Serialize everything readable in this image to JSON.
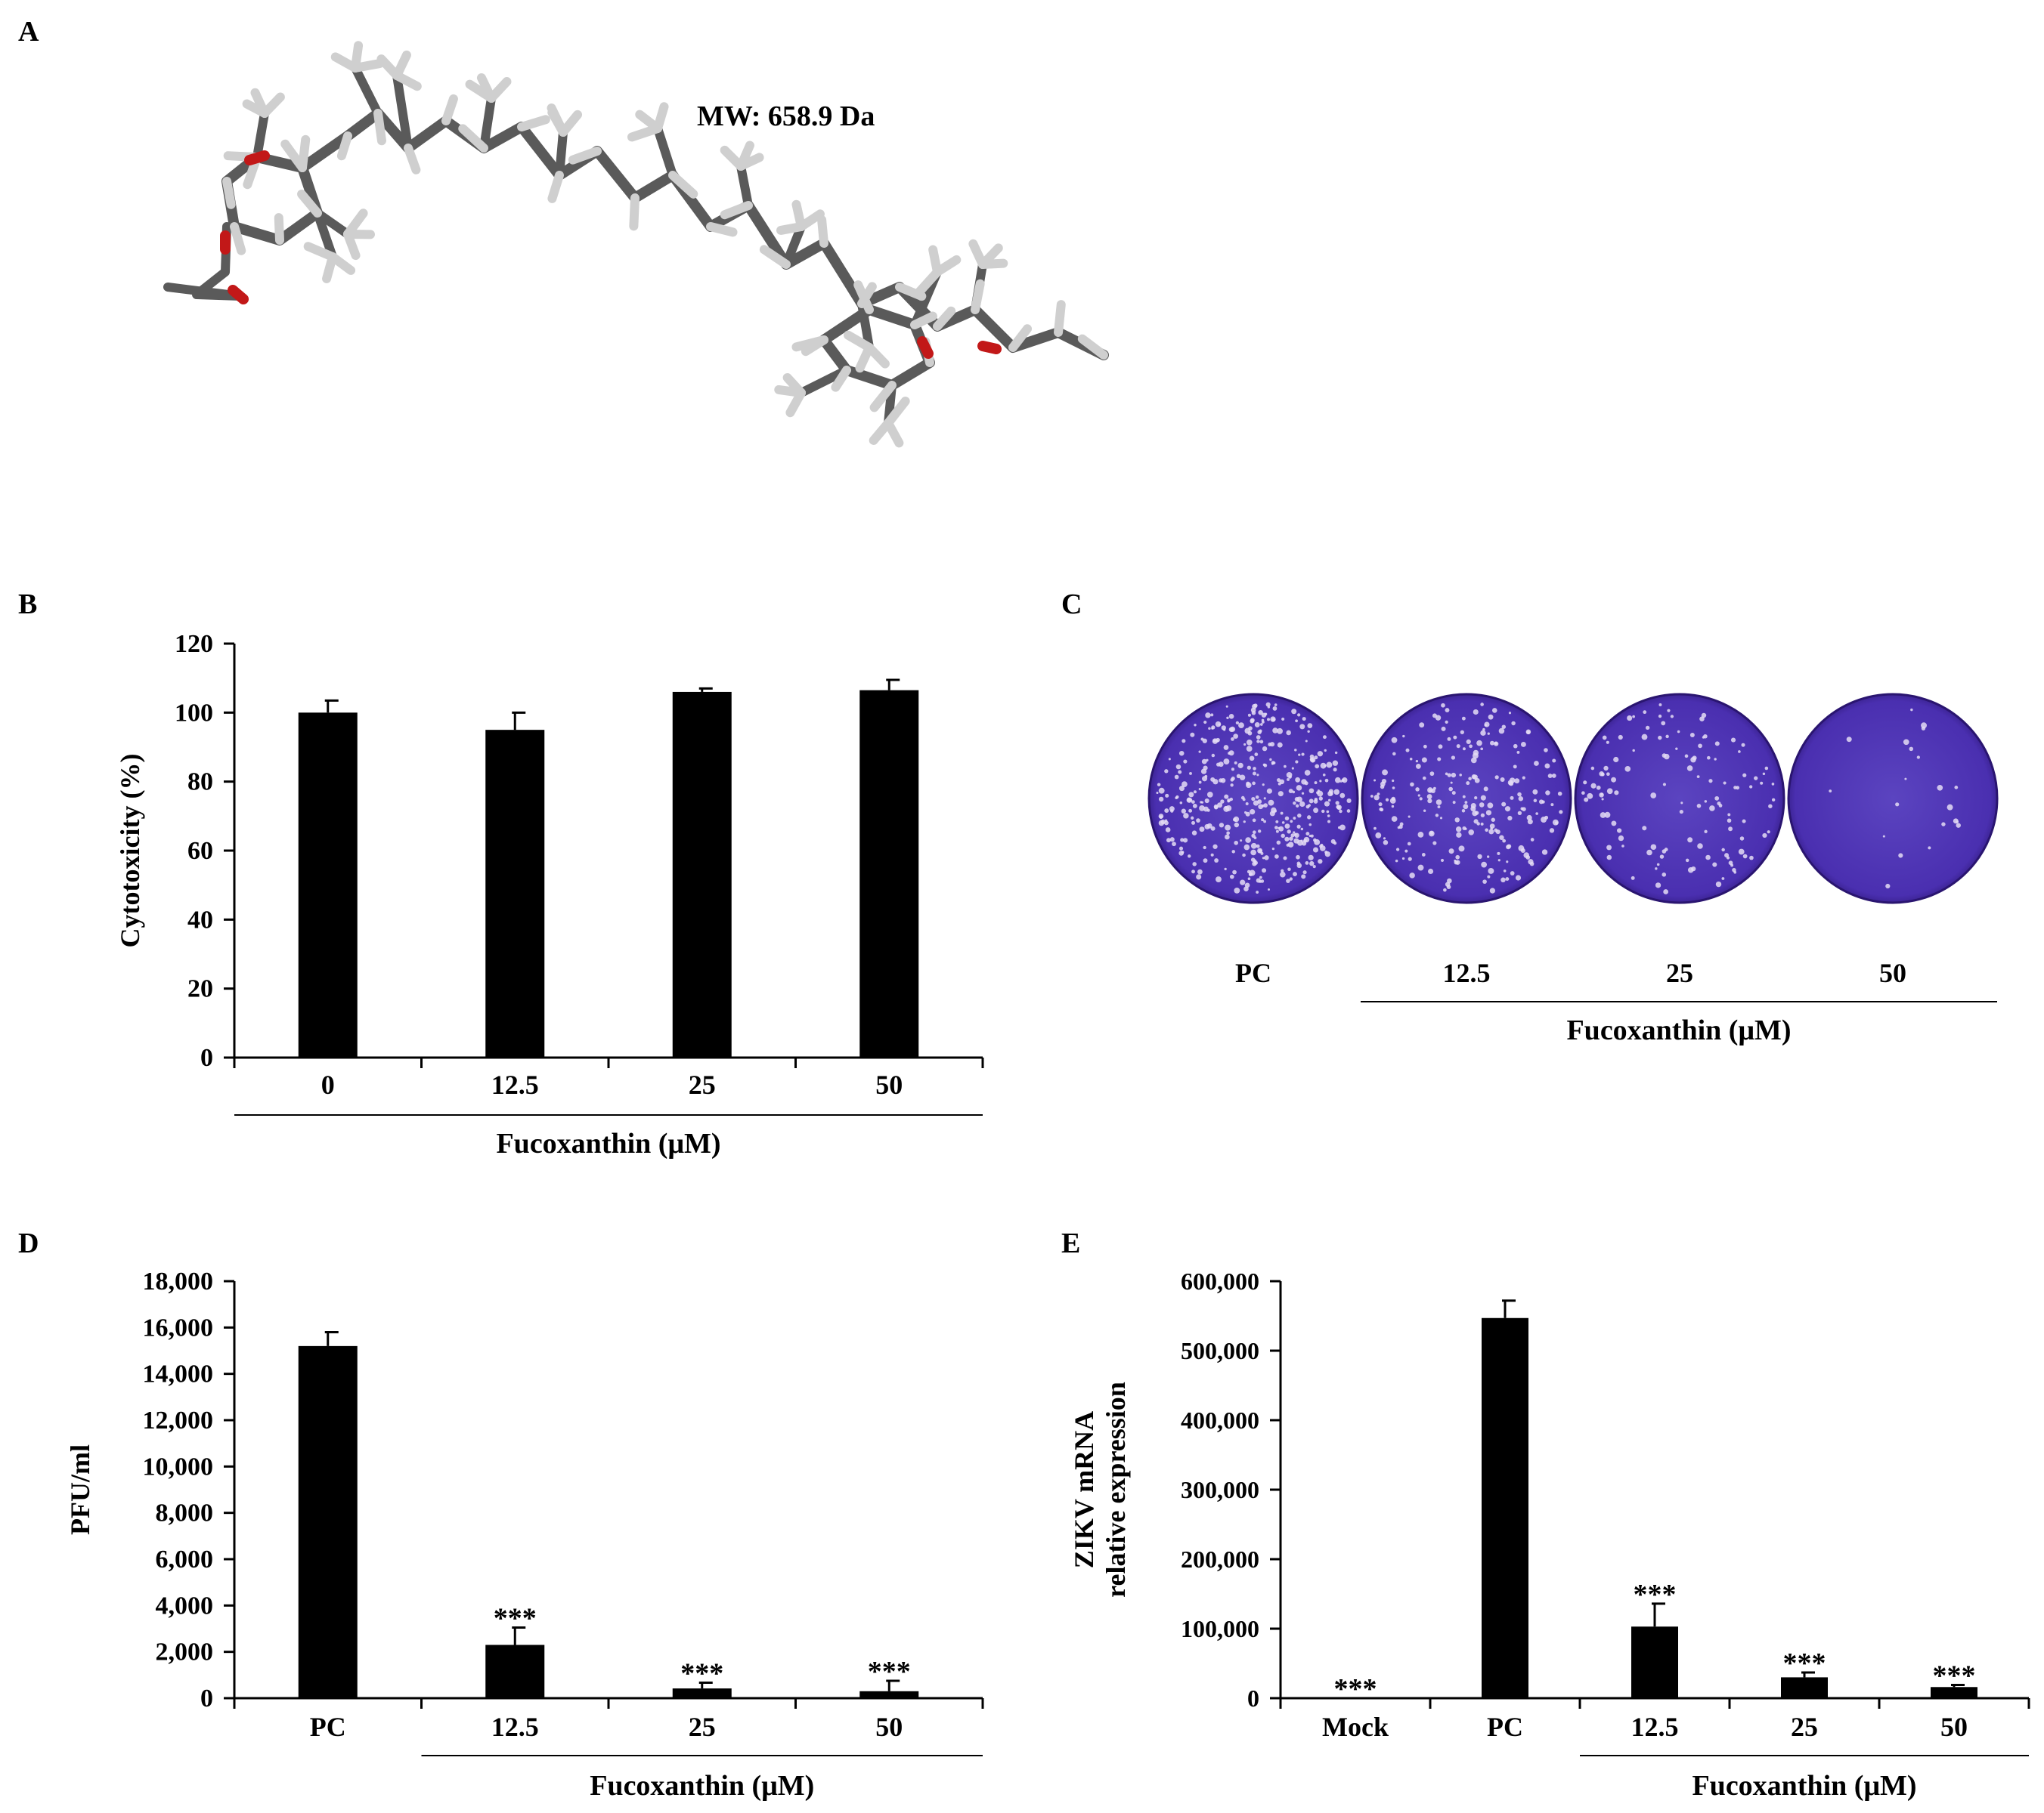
{
  "panels": {
    "A": {
      "letter": "A",
      "mw_label": "MW: 658.9 Da",
      "colors": {
        "carbon": "#5a5a5a",
        "hydrogen": "#cfcfcf",
        "oxygen": "#c21818"
      }
    },
    "C": {
      "letter": "C",
      "group_label": "Fucoxanthin (μM)",
      "labels": [
        "PC",
        "12.5",
        "25",
        "50"
      ],
      "plaque_levels": [
        1.0,
        0.55,
        0.3,
        0.05
      ],
      "colors": {
        "well": "#4a2fb0",
        "well_edge": "#2a1570",
        "plaque": "#e4dcf4"
      }
    }
  },
  "chart_data": [
    {
      "id": "B",
      "letter": "B",
      "type": "bar",
      "categories": [
        "0",
        "12.5",
        "25",
        "50"
      ],
      "values": [
        100,
        95,
        106,
        106.5
      ],
      "errors": [
        3.5,
        5,
        1,
        3
      ],
      "ylabel": "Cytotoxicity (%)",
      "xlabel": "Fucoxanthin (μM)",
      "group_start": 0,
      "ylim": [
        0,
        120
      ],
      "yticks": [
        0,
        20,
        40,
        60,
        80,
        100,
        120
      ],
      "ytick_labels": [
        "0",
        "20",
        "40",
        "60",
        "80",
        "100",
        "120"
      ],
      "annotations": [
        "",
        "",
        "",
        ""
      ],
      "color": "#000000"
    },
    {
      "id": "D",
      "letter": "D",
      "type": "bar",
      "categories": [
        "PC",
        "12.5",
        "25",
        "50"
      ],
      "values": [
        15200,
        2300,
        420,
        300
      ],
      "errors": [
        600,
        750,
        250,
        450
      ],
      "ylabel": "PFU/ml",
      "xlabel": "Fucoxanthin (μM)",
      "group_start": 1,
      "ylim": [
        0,
        18000
      ],
      "yticks": [
        0,
        2000,
        4000,
        6000,
        8000,
        10000,
        12000,
        14000,
        16000,
        18000
      ],
      "ytick_labels": [
        "0",
        "2,000",
        "4,000",
        "6,000",
        "8,000",
        "10,000",
        "12,000",
        "14,000",
        "16,000",
        "18,000"
      ],
      "annotations": [
        "",
        "***",
        "***",
        "***"
      ],
      "color": "#000000"
    },
    {
      "id": "E",
      "letter": "E",
      "type": "bar",
      "categories": [
        "Mock",
        "PC",
        "12.5",
        "25",
        "50"
      ],
      "values": [
        0,
        547000,
        103000,
        30000,
        16000
      ],
      "errors": [
        0,
        25000,
        33000,
        7000,
        3000
      ],
      "ylabel_lines": [
        "ZIKV mRNA",
        "relative expression"
      ],
      "xlabel": "Fucoxanthin (μM)",
      "group_start": 2,
      "ylim": [
        0,
        600000
      ],
      "yticks": [
        0,
        100000,
        200000,
        300000,
        400000,
        500000,
        600000
      ],
      "ytick_labels": [
        "0",
        "100,000",
        "200,000",
        "300,000",
        "400,000",
        "500,000",
        "600,000"
      ],
      "annotations": [
        "***",
        "",
        "***",
        "***",
        "***"
      ],
      "color": "#000000"
    }
  ]
}
